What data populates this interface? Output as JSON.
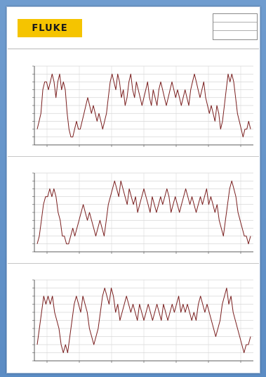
{
  "document": {
    "logo": {
      "text": "FLUKE",
      "color": "#f5c400"
    },
    "info_rows": [
      "",
      "",
      ""
    ]
  },
  "chart_data": [
    {
      "type": "line",
      "title": "",
      "ylabel": "",
      "x_tick_labels": [
        "",
        "",
        "",
        "",
        "",
        "",
        ""
      ],
      "y_tick_count": 11,
      "ylim": [
        0,
        10
      ],
      "grid": true,
      "series_color": "#7a1f1f",
      "values": [
        2,
        3,
        4,
        7,
        8,
        8,
        7,
        8,
        9,
        8,
        6,
        8,
        9,
        7,
        8,
        7,
        4,
        2,
        1,
        1,
        2,
        3,
        2,
        2,
        3,
        4,
        5,
        6,
        5,
        4,
        5,
        4,
        3,
        4,
        3,
        2,
        3,
        4,
        6,
        8,
        9,
        8,
        7,
        9,
        8,
        6,
        7,
        5,
        6,
        8,
        9,
        7,
        6,
        8,
        7,
        6,
        5,
        6,
        7,
        8,
        6,
        5,
        7,
        6,
        5,
        7,
        8,
        7,
        6,
        5,
        6,
        7,
        8,
        7,
        6,
        7,
        6,
        5,
        6,
        7,
        6,
        5,
        7,
        8,
        9,
        8,
        7,
        6,
        7,
        8,
        6,
        5,
        4,
        5,
        4,
        3,
        5,
        4,
        2,
        3,
        5,
        7,
        9,
        8,
        9,
        8,
        6,
        4,
        3,
        2,
        1,
        2,
        2,
        3,
        2
      ]
    },
    {
      "type": "line",
      "title": "",
      "ylabel": "",
      "x_tick_labels": [
        "",
        "",
        "",
        "",
        "",
        "",
        ""
      ],
      "y_tick_count": 11,
      "ylim": [
        0,
        10
      ],
      "grid": true,
      "series_color": "#7a1f1f",
      "values": [
        1,
        2,
        4,
        6,
        7,
        7,
        8,
        7,
        8,
        7,
        5,
        4,
        2,
        2,
        1,
        1,
        2,
        3,
        2,
        3,
        4,
        5,
        6,
        5,
        4,
        5,
        4,
        3,
        2,
        3,
        4,
        3,
        2,
        4,
        6,
        7,
        8,
        9,
        8,
        7,
        9,
        8,
        7,
        6,
        8,
        7,
        6,
        7,
        5,
        6,
        7,
        8,
        7,
        6,
        5,
        7,
        6,
        5,
        6,
        7,
        6,
        7,
        8,
        7,
        5,
        6,
        7,
        6,
        5,
        6,
        7,
        8,
        7,
        6,
        7,
        6,
        5,
        6,
        7,
        6,
        7,
        8,
        6,
        7,
        6,
        5,
        6,
        4,
        3,
        2,
        4,
        6,
        8,
        9,
        8,
        7,
        5,
        4,
        3,
        2,
        2,
        1,
        2
      ]
    },
    {
      "type": "line",
      "title": "",
      "ylabel": "",
      "x_tick_labels": [
        "",
        "",
        "",
        "",
        "",
        "",
        ""
      ],
      "y_tick_count": 11,
      "ylim": [
        0,
        10
      ],
      "grid": true,
      "series_color": "#7a1f1f",
      "values": [
        2,
        4,
        6,
        8,
        7,
        8,
        7,
        8,
        6,
        5,
        4,
        2,
        1,
        2,
        1,
        3,
        5,
        7,
        8,
        7,
        6,
        8,
        7,
        6,
        4,
        3,
        2,
        3,
        4,
        6,
        8,
        9,
        8,
        7,
        9,
        8,
        6,
        7,
        5,
        6,
        7,
        8,
        7,
        6,
        7,
        6,
        5,
        7,
        6,
        5,
        6,
        7,
        6,
        5,
        6,
        7,
        6,
        5,
        7,
        6,
        5,
        6,
        7,
        6,
        7,
        8,
        6,
        7,
        6,
        7,
        6,
        5,
        6,
        5,
        7,
        8,
        7,
        6,
        7,
        6,
        5,
        4,
        3,
        4,
        5,
        7,
        8,
        9,
        7,
        8,
        6,
        5,
        4,
        3,
        2,
        1,
        2,
        2,
        3
      ]
    }
  ]
}
